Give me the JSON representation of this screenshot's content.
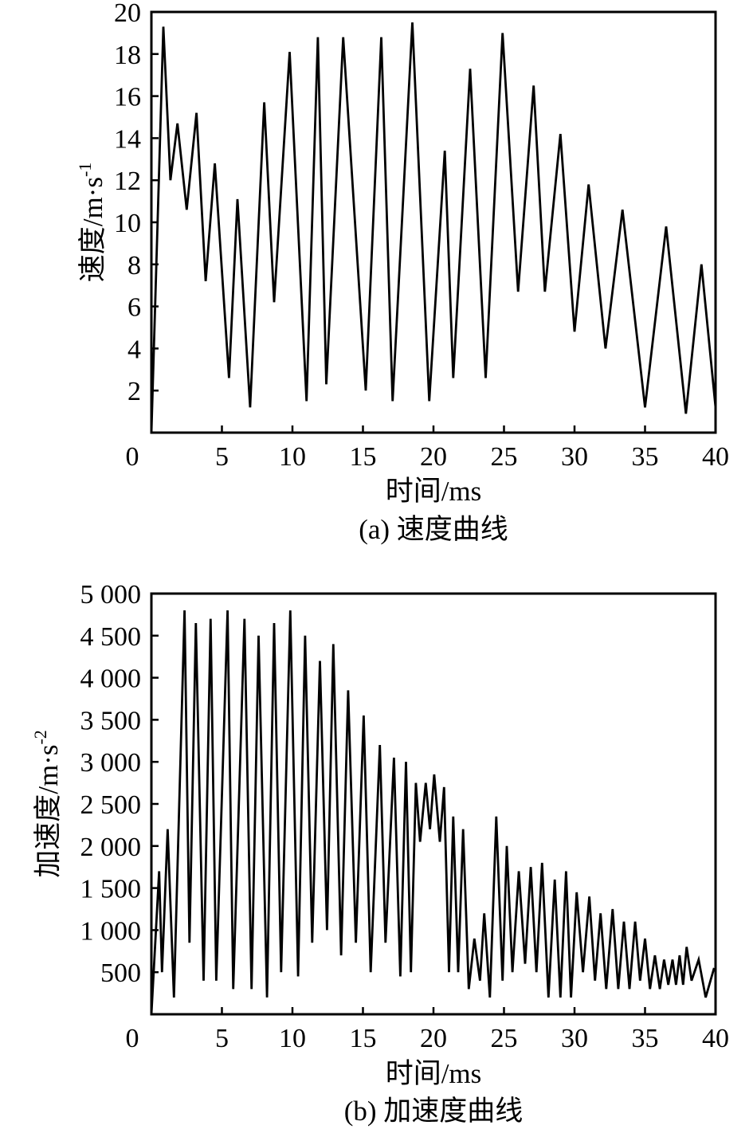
{
  "chart_data": [
    {
      "type": "line",
      "caption": "(a) 速度曲线",
      "xlabel": "时间/ms",
      "ylabel": "速度/m·s",
      "ylabel_sup": "-1",
      "xlim": [
        0,
        40
      ],
      "ylim": [
        0,
        20
      ],
      "xticks": [
        0,
        5,
        10,
        15,
        20,
        25,
        30,
        35,
        40
      ],
      "yticks": [
        2,
        4,
        6,
        8,
        10,
        12,
        14,
        16,
        18,
        20
      ],
      "grid": false,
      "legend": "none",
      "x": [
        0,
        0.85,
        1.35,
        1.85,
        2.5,
        3.2,
        3.85,
        4.5,
        5.5,
        6.1,
        7.0,
        8.0,
        8.7,
        9.8,
        11.0,
        11.8,
        12.4,
        13.6,
        15.2,
        16.3,
        17.1,
        18.5,
        19.7,
        20.8,
        21.4,
        22.6,
        23.7,
        24.9,
        26.0,
        27.1,
        27.9,
        29.0,
        30.0,
        31.0,
        32.2,
        33.4,
        35.0,
        36.5,
        37.9,
        39.0,
        40.0
      ],
      "y": [
        0,
        19.3,
        12.0,
        14.7,
        10.6,
        15.2,
        7.2,
        12.8,
        2.6,
        11.1,
        1.2,
        15.7,
        6.2,
        18.1,
        1.5,
        18.8,
        2.3,
        18.8,
        2.0,
        18.8,
        1.5,
        19.5,
        1.5,
        13.4,
        2.6,
        17.3,
        2.6,
        19.0,
        6.7,
        16.5,
        6.7,
        14.2,
        4.8,
        11.8,
        4.0,
        10.6,
        1.2,
        9.8,
        0.9,
        8.0,
        1.2
      ]
    },
    {
      "type": "line",
      "caption": "(b) 加速度曲线",
      "xlabel": "时间/ms",
      "ylabel": "加速度/m·s",
      "ylabel_sup": "-2",
      "xlim": [
        0,
        40
      ],
      "ylim": [
        0,
        5000
      ],
      "xticks": [
        0,
        5,
        10,
        15,
        20,
        25,
        30,
        35,
        40
      ],
      "yticks": [
        500,
        1000,
        1500,
        2000,
        2500,
        3000,
        3500,
        4000,
        4500,
        5000
      ],
      "ytick_labels": [
        "500",
        "1 000",
        "1 500",
        "2 000",
        "2 500",
        "3 000",
        "3 500",
        "4 000",
        "4 500",
        "5 000"
      ],
      "grid": false,
      "legend": "none",
      "x": [
        0,
        0.55,
        0.75,
        1.15,
        1.6,
        2.35,
        2.7,
        3.15,
        3.7,
        4.2,
        4.6,
        5.4,
        5.8,
        6.6,
        7.1,
        7.6,
        8.2,
        8.7,
        9.2,
        9.85,
        10.4,
        10.9,
        11.4,
        11.95,
        12.45,
        12.9,
        13.45,
        13.95,
        14.5,
        15.05,
        15.55,
        16.2,
        16.6,
        17.2,
        17.65,
        18.05,
        18.4,
        18.75,
        19.05,
        19.45,
        19.75,
        20.05,
        20.45,
        20.75,
        21.1,
        21.4,
        21.75,
        22.1,
        22.5,
        22.9,
        23.3,
        23.6,
        24.0,
        24.45,
        24.9,
        25.2,
        25.6,
        26.05,
        26.5,
        26.9,
        27.3,
        27.7,
        28.15,
        28.6,
        29.0,
        29.4,
        29.75,
        30.15,
        30.6,
        31.05,
        31.45,
        31.85,
        32.25,
        32.7,
        33.1,
        33.5,
        33.9,
        34.3,
        34.65,
        35.0,
        35.35,
        35.7,
        36.05,
        36.35,
        36.65,
        36.95,
        37.2,
        37.45,
        37.7,
        37.95,
        38.3,
        38.8,
        39.3,
        39.9
      ],
      "y": [
        0,
        1700,
        500,
        2200,
        200,
        4800,
        850,
        4650,
        400,
        4700,
        400,
        4800,
        300,
        4700,
        300,
        4500,
        200,
        4650,
        500,
        4800,
        450,
        4500,
        850,
        4200,
        1000,
        4400,
        700,
        3850,
        850,
        3550,
        500,
        3200,
        850,
        3050,
        450,
        3000,
        500,
        2750,
        2050,
        2750,
        2200,
        2850,
        2050,
        2700,
        500,
        2350,
        500,
        2200,
        300,
        900,
        400,
        1200,
        200,
        2350,
        400,
        2000,
        500,
        1700,
        600,
        1750,
        500,
        1800,
        200,
        1600,
        200,
        1700,
        200,
        1450,
        500,
        1400,
        400,
        1200,
        300,
        1250,
        300,
        1100,
        300,
        1100,
        400,
        900,
        300,
        700,
        300,
        650,
        350,
        650,
        350,
        700,
        350,
        800,
        400,
        650,
        200,
        550
      ]
    }
  ]
}
